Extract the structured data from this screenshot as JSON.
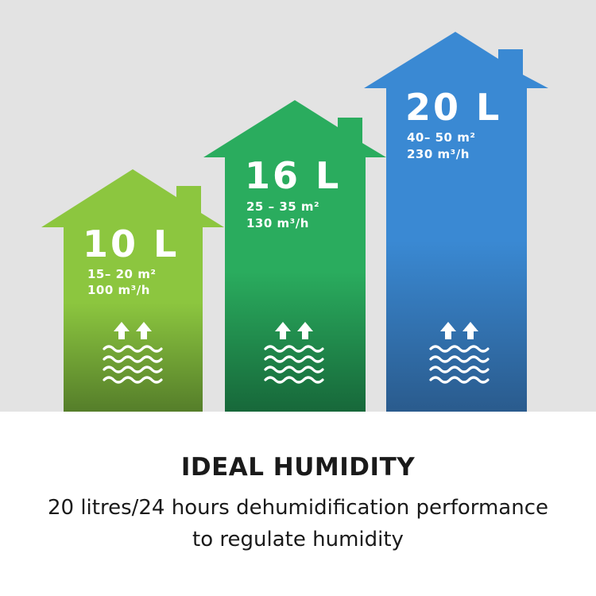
{
  "houses": [
    {
      "capacity": "10 L",
      "area": "15– 20 m²",
      "airflow": "100 m³/h",
      "color_top": "#8cc63f",
      "color_bottom": "#557e2a",
      "icon": "humidity-water-icon"
    },
    {
      "capacity": "16 L",
      "area": "25 – 35 m²",
      "airflow": "130 m³/h",
      "color_top": "#2aac5e",
      "color_bottom": "#17683a",
      "icon": "humidity-water-icon"
    },
    {
      "capacity": "20 L",
      "area": "40– 50 m²",
      "airflow": "230 m³/h",
      "color_top": "#3a89d3",
      "color_bottom": "#2a5b8d",
      "icon": "humidity-water-icon"
    }
  ],
  "caption": {
    "title": "IDEAL HUMIDITY",
    "line1": "20 litres/24 hours dehumidification performance",
    "line2": "to regulate humidity"
  },
  "colors": {
    "backdrop": "#e3e3e3",
    "text_dark": "#1a1a1a"
  }
}
